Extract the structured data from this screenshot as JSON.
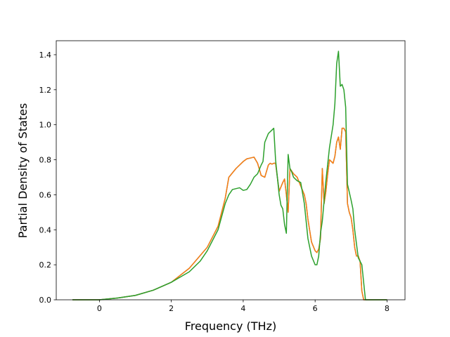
{
  "chart_data": {
    "type": "line",
    "title": "",
    "xlabel": "Frequency (THz)",
    "ylabel": "Partial Density of States",
    "xlim": [
      -1.2,
      8.5
    ],
    "ylim": [
      0.0,
      1.48
    ],
    "xticks": [
      0,
      2,
      4,
      6,
      8
    ],
    "yticks": [
      0.0,
      0.2,
      0.4,
      0.6,
      0.8,
      1.0,
      1.2,
      1.4
    ],
    "xtick_labels": [
      "0",
      "2",
      "4",
      "6",
      "8"
    ],
    "ytick_labels": [
      "0.0",
      "0.2",
      "0.4",
      "0.6",
      "0.8",
      "1.0",
      "1.2",
      "1.4"
    ],
    "grid": false,
    "legend": "none",
    "series": [
      {
        "color": "#1f77b4",
        "x": [
          -0.75,
          0.0,
          0.5,
          1.0,
          1.5,
          2.0,
          2.5,
          3.0,
          3.3,
          3.5,
          3.6,
          3.8,
          4.0,
          4.1,
          4.2,
          4.3,
          4.4,
          4.5,
          4.6,
          4.7,
          4.75,
          4.8,
          4.85,
          4.9,
          5.0,
          5.1,
          5.15,
          5.2,
          5.25,
          5.3,
          5.4,
          5.5,
          5.6,
          5.7,
          5.75,
          5.8,
          5.9,
          6.0,
          6.05,
          6.1,
          6.15,
          6.2,
          6.25,
          6.3,
          6.35,
          6.4,
          6.5,
          6.55,
          6.6,
          6.65,
          6.7,
          6.75,
          6.8,
          6.85,
          6.9,
          6.95,
          7.0,
          7.05,
          7.1,
          7.15,
          7.2,
          7.25,
          7.3,
          7.35,
          7.4,
          7.6,
          8.0
        ],
        "y": [
          0.0,
          0.0,
          0.01,
          0.025,
          0.055,
          0.1,
          0.18,
          0.3,
          0.42,
          0.58,
          0.7,
          0.75,
          0.79,
          0.805,
          0.81,
          0.815,
          0.78,
          0.71,
          0.7,
          0.77,
          0.78,
          0.775,
          0.78,
          0.78,
          0.62,
          0.67,
          0.69,
          0.6,
          0.5,
          0.75,
          0.72,
          0.7,
          0.65,
          0.6,
          0.55,
          0.46,
          0.33,
          0.28,
          0.27,
          0.29,
          0.35,
          0.75,
          0.55,
          0.62,
          0.72,
          0.8,
          0.78,
          0.82,
          0.9,
          0.93,
          0.86,
          0.98,
          0.98,
          0.96,
          0.55,
          0.5,
          0.47,
          0.4,
          0.3,
          0.25,
          0.25,
          0.22,
          0.05,
          0.0,
          0.0,
          0.0,
          0.0
        ]
      },
      {
        "color": "#ff7f0e",
        "x": [
          -0.75,
          0.0,
          0.5,
          1.0,
          1.5,
          2.0,
          2.5,
          3.0,
          3.3,
          3.5,
          3.6,
          3.8,
          4.0,
          4.1,
          4.2,
          4.3,
          4.4,
          4.5,
          4.6,
          4.7,
          4.75,
          4.8,
          4.85,
          4.9,
          5.0,
          5.1,
          5.15,
          5.2,
          5.25,
          5.3,
          5.4,
          5.5,
          5.6,
          5.7,
          5.75,
          5.8,
          5.9,
          6.0,
          6.05,
          6.1,
          6.15,
          6.2,
          6.25,
          6.3,
          6.35,
          6.4,
          6.5,
          6.55,
          6.6,
          6.65,
          6.7,
          6.75,
          6.8,
          6.85,
          6.9,
          6.95,
          7.0,
          7.05,
          7.1,
          7.15,
          7.2,
          7.25,
          7.3,
          7.35,
          7.4,
          7.6,
          8.0
        ],
        "y": [
          0.0,
          0.0,
          0.01,
          0.025,
          0.055,
          0.1,
          0.18,
          0.3,
          0.42,
          0.58,
          0.7,
          0.75,
          0.79,
          0.805,
          0.81,
          0.815,
          0.78,
          0.71,
          0.7,
          0.77,
          0.78,
          0.775,
          0.78,
          0.78,
          0.62,
          0.67,
          0.69,
          0.6,
          0.5,
          0.75,
          0.72,
          0.7,
          0.65,
          0.6,
          0.55,
          0.46,
          0.33,
          0.28,
          0.27,
          0.29,
          0.35,
          0.75,
          0.55,
          0.62,
          0.72,
          0.8,
          0.78,
          0.82,
          0.9,
          0.93,
          0.86,
          0.98,
          0.98,
          0.96,
          0.55,
          0.5,
          0.47,
          0.4,
          0.3,
          0.25,
          0.25,
          0.22,
          0.05,
          0.0,
          0.0,
          0.0,
          0.0
        ]
      },
      {
        "color": "#2ca02c",
        "x": [
          -0.75,
          0.0,
          0.5,
          1.0,
          1.5,
          2.0,
          2.5,
          2.8,
          3.0,
          3.3,
          3.5,
          3.6,
          3.7,
          3.8,
          3.9,
          4.0,
          4.1,
          4.2,
          4.3,
          4.4,
          4.5,
          4.55,
          4.6,
          4.7,
          4.8,
          4.85,
          4.9,
          5.0,
          5.05,
          5.1,
          5.15,
          5.2,
          5.25,
          5.3,
          5.35,
          5.4,
          5.5,
          5.6,
          5.7,
          5.8,
          5.9,
          6.0,
          6.05,
          6.1,
          6.15,
          6.2,
          6.3,
          6.4,
          6.5,
          6.55,
          6.6,
          6.65,
          6.7,
          6.75,
          6.8,
          6.85,
          6.9,
          7.0,
          7.05,
          7.1,
          7.2,
          7.3,
          7.35,
          7.4,
          7.6,
          8.0
        ],
        "y": [
          0.0,
          0.0,
          0.01,
          0.025,
          0.055,
          0.1,
          0.16,
          0.22,
          0.28,
          0.4,
          0.55,
          0.6,
          0.63,
          0.635,
          0.64,
          0.625,
          0.63,
          0.66,
          0.7,
          0.72,
          0.77,
          0.79,
          0.9,
          0.95,
          0.97,
          0.98,
          0.8,
          0.6,
          0.54,
          0.52,
          0.43,
          0.38,
          0.83,
          0.75,
          0.73,
          0.7,
          0.68,
          0.67,
          0.55,
          0.35,
          0.25,
          0.2,
          0.2,
          0.25,
          0.38,
          0.45,
          0.68,
          0.87,
          1.0,
          1.12,
          1.35,
          1.42,
          1.22,
          1.23,
          1.2,
          1.1,
          0.66,
          0.57,
          0.52,
          0.4,
          0.24,
          0.2,
          0.1,
          0.0,
          0.0,
          0.0
        ]
      }
    ]
  }
}
